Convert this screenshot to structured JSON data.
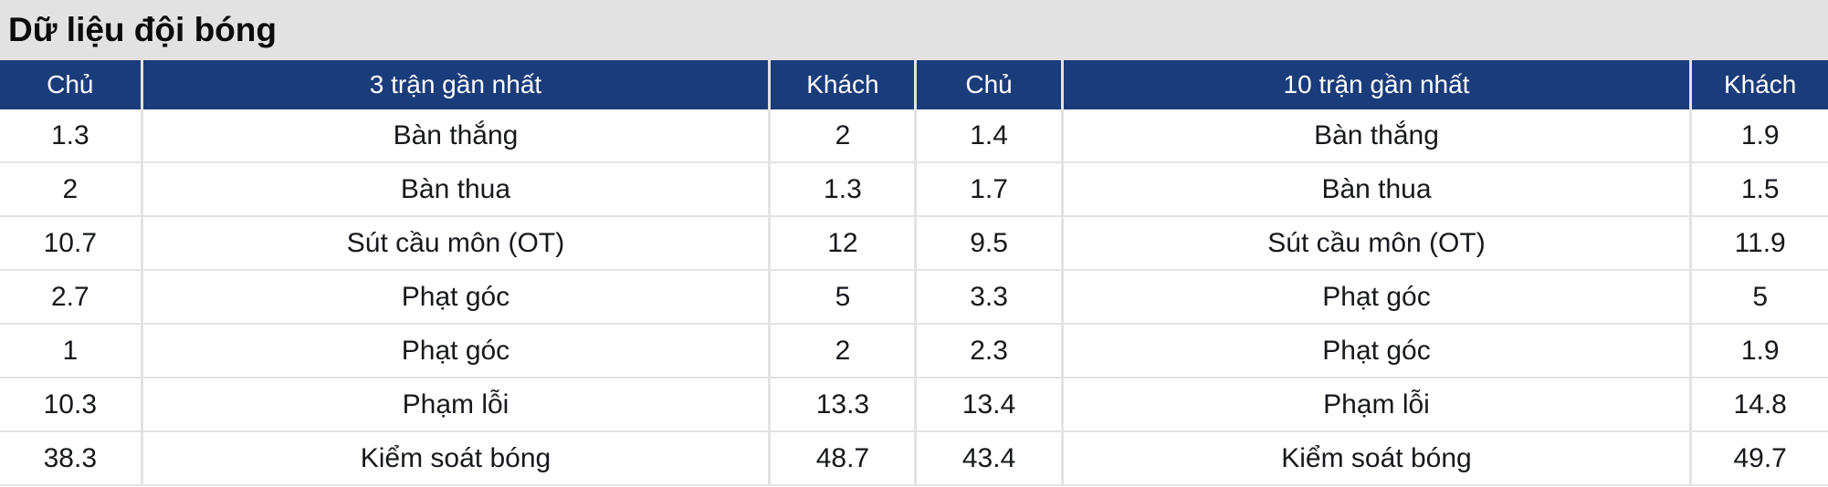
{
  "title": "Dữ liệu đội bóng",
  "table": {
    "headers": [
      "Chủ",
      "3 trận gần nhất",
      "Khách",
      "Chủ",
      "10 trận gần nhất",
      "Khách"
    ],
    "rows": [
      [
        "1.3",
        "Bàn thắng",
        "2",
        "1.4",
        "Bàn thắng",
        "1.9"
      ],
      [
        "2",
        "Bàn thua",
        "1.3",
        "1.7",
        "Bàn thua",
        "1.5"
      ],
      [
        "10.7",
        "Sút cầu môn (OT)",
        "12",
        "9.5",
        "Sút cầu môn (OT)",
        "11.9"
      ],
      [
        "2.7",
        "Phạt góc",
        "5",
        "3.3",
        "Phạt góc",
        "5"
      ],
      [
        "1",
        "Phạt góc",
        "2",
        "2.3",
        "Phạt góc",
        "1.9"
      ],
      [
        "10.3",
        "Phạm lỗi",
        "13.3",
        "13.4",
        "Phạm lỗi",
        "14.8"
      ],
      [
        "38.3",
        "Kiểm soát bóng",
        "48.7",
        "43.4",
        "Kiểm soát bóng",
        "49.7"
      ]
    ]
  },
  "colors": {
    "header_bg": "#1b3c7a",
    "header_text": "#ffffff",
    "title_bar_bg": "#e2e2e2",
    "row_bg": "#ffffff",
    "divider": "#e3e3e3",
    "cell_text": "#16181c"
  }
}
